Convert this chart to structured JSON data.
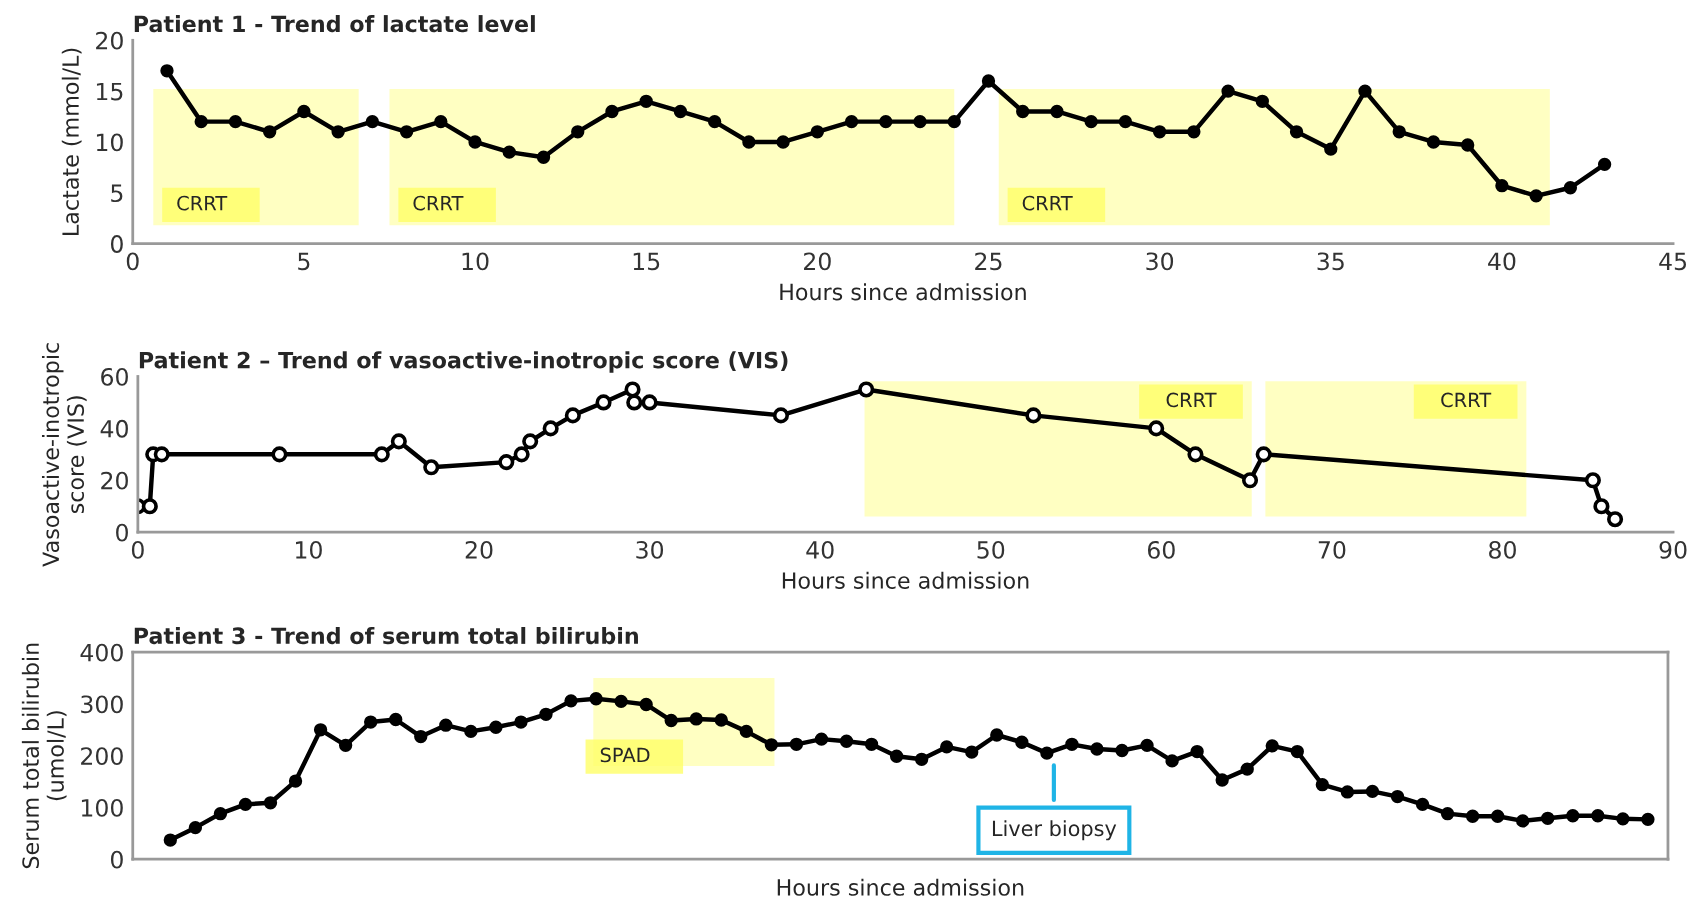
{
  "chart_data": [
    {
      "type": "line",
      "title": "Patient 1 - Trend of lactate level",
      "xlabel": "Hours since admission",
      "ylabel": "Lactate (mmol/L)",
      "x": [
        1,
        2,
        3,
        4,
        5,
        6,
        7,
        8,
        9,
        10,
        11,
        12,
        13,
        14,
        15,
        16,
        17,
        18,
        19,
        20,
        21,
        22,
        23,
        24,
        25,
        26,
        27,
        28,
        29,
        30,
        31,
        32,
        33,
        34,
        35,
        36,
        37,
        38,
        39,
        40,
        41,
        42,
        43
      ],
      "series": [
        {
          "color": "#000000",
          "values": [
            17,
            12,
            12,
            11,
            13,
            11,
            12,
            11,
            12,
            10,
            9,
            8.5,
            11,
            13,
            14,
            13,
            12,
            10,
            10,
            11,
            12,
            12,
            12,
            12,
            16,
            13,
            13,
            12,
            12,
            11,
            11,
            15,
            14,
            11,
            9.3,
            15,
            11,
            10,
            9.7,
            5.7,
            4.7,
            5.5,
            7.8
          ]
        }
      ],
      "xlim": [
        0,
        45
      ],
      "xticks": [
        0,
        5,
        10,
        15,
        20,
        25,
        30,
        35,
        40,
        45
      ],
      "ylim": [
        0,
        20
      ],
      "yticks": [
        0,
        5,
        10,
        15,
        20
      ],
      "bands": [
        {
          "axis": "x",
          "from": 0.6,
          "to": 6.6,
          "label": "CRRT",
          "color": "#ffff99"
        },
        {
          "axis": "x",
          "from": 7.5,
          "to": 24,
          "label": "CRRT",
          "color": "#ffff99"
        },
        {
          "axis": "x",
          "from": 25.3,
          "to": 41.4,
          "label": "CRRT",
          "color": "#ffff99"
        }
      ],
      "marker": "circle",
      "line_style": "solid",
      "grid": false
    },
    {
      "type": "line",
      "title": "Patient 2 – Trend of vasoactive-inotropic score (VIS)",
      "xlabel": "Hours since admission",
      "ylabel": "Vasoactive-inotropic\nscore (VIS)",
      "x": [
        0,
        0.7,
        0.9,
        1.4,
        8.3,
        14.3,
        15.3,
        17.2,
        21.6,
        22.5,
        23.0,
        24.2,
        25.5,
        27.3,
        29.0,
        29.1,
        30.0,
        37.7,
        42.7,
        52.5,
        59.7,
        62.0,
        65.2,
        66.0,
        85.3,
        85.8,
        86.6
      ],
      "series": [
        {
          "color": "#000000",
          "values": [
            10,
            10,
            30,
            30,
            30,
            30,
            35,
            25,
            27,
            30,
            35,
            40,
            45,
            50,
            55,
            50,
            50,
            45,
            55,
            45,
            40,
            30,
            20,
            30,
            20,
            10,
            5
          ]
        }
      ],
      "xlim": [
        0,
        90
      ],
      "xticks": [
        0,
        10,
        20,
        30,
        40,
        50,
        60,
        70,
        80,
        90
      ],
      "ylim": [
        0,
        60
      ],
      "yticks": [
        0,
        20,
        40,
        60
      ],
      "bands": [
        {
          "axis": "x",
          "from": 42.6,
          "to": 65.3,
          "label": "CRRT",
          "color": "#ffff99"
        },
        {
          "axis": "x",
          "from": 66.1,
          "to": 81.4,
          "label": "CRRT",
          "color": "#ffff99"
        }
      ],
      "marker": "circle",
      "line_style": "solid",
      "grid": false
    },
    {
      "type": "line",
      "title": "Patient 3 - Trend of serum total bilirubin",
      "xlabel": "Hours since admission",
      "ylabel": "Serum total bilirubin\n(umol/L)",
      "categories": [
        null,
        null,
        null,
        null,
        null,
        null,
        null,
        null,
        null,
        null,
        null,
        null,
        null,
        null,
        null,
        null,
        null,
        null,
        null,
        null,
        null,
        null,
        null,
        null,
        null,
        null,
        null,
        null,
        null,
        null,
        null,
        null,
        null,
        null,
        null,
        null,
        null,
        null,
        null,
        null,
        null,
        null,
        null,
        null,
        null,
        null,
        null,
        null,
        null,
        null,
        null,
        null,
        null,
        null,
        null,
        null,
        null,
        null,
        null,
        null
      ],
      "series": [
        {
          "color": "#000000",
          "values": [
            37,
            61,
            88,
            106,
            109,
            151,
            250,
            220,
            265,
            270,
            237,
            259,
            247,
            255,
            265,
            280,
            306,
            310,
            305,
            299,
            268,
            271,
            269,
            247,
            221,
            222,
            232,
            228,
            222,
            199,
            193,
            217,
            207,
            240,
            226,
            205,
            222,
            213,
            210,
            220,
            190,
            208,
            153,
            174,
            219,
            208,
            144,
            130,
            131,
            121,
            106,
            88,
            83,
            83,
            74,
            79,
            84,
            84,
            78,
            77
          ]
        }
      ],
      "ylim": [
        0,
        400
      ],
      "yticks": [
        0,
        100,
        200,
        300,
        400
      ],
      "annotations": [
        "SPAD",
        "Liver biopsy"
      ],
      "marker": "circle",
      "line_style": "solid",
      "grid": false
    }
  ]
}
